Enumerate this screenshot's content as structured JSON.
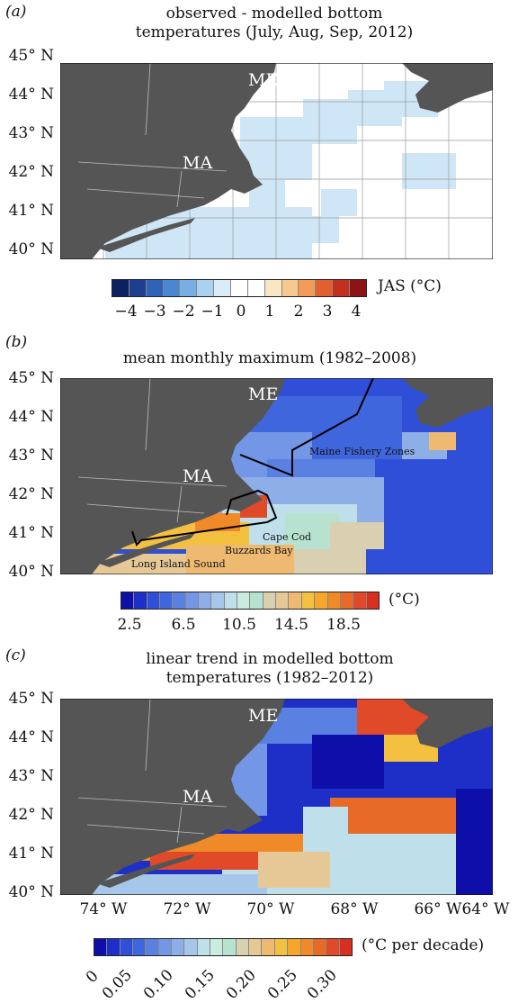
{
  "panels": {
    "a": {
      "label": "(a)",
      "title_line1": "observed - modelled bottom",
      "title_line2": "temperatures (July, Aug, Sep, 2012)",
      "state_labels": [
        "ME",
        "MA"
      ],
      "colorbar": {
        "label": "JAS (°C)",
        "ticks": [
          "−4",
          "−3",
          "−2",
          "−1",
          "0",
          "1",
          "2",
          "3",
          "4"
        ],
        "colors": [
          "#0c1f5e",
          "#1c3f8f",
          "#2f63b8",
          "#4a86d2",
          "#79aee3",
          "#a9d2f0",
          "#d8ecf8",
          "#ffffff",
          "#ffffff",
          "#fbe6c4",
          "#f7c98e",
          "#f39c5a",
          "#e0602f",
          "#c3301f",
          "#8e1414"
        ]
      }
    },
    "b": {
      "label": "(b)",
      "title": "mean monthly maximum (1982–2008)",
      "state_labels": [
        "ME",
        "MA"
      ],
      "annotations": [
        "Maine Fishery Zones",
        "Cape Cod",
        "Buzzards Bay",
        "Long Island Sound"
      ],
      "colorbar": {
        "label": "(°C)",
        "ticks": [
          "2.5",
          "6.5",
          "10.5",
          "14.5",
          "18.5"
        ],
        "colors": [
          "#0e0fa8",
          "#1e2fc8",
          "#2f4fd8",
          "#4066de",
          "#5a80e2",
          "#7397e6",
          "#8eaee8",
          "#a6c6ea",
          "#bfe0ea",
          "#c8ece0",
          "#b8e2d0",
          "#d8d0b0",
          "#e6c896",
          "#eeba72",
          "#f4c040",
          "#f6a62a",
          "#f08a28",
          "#e86a28",
          "#e04a28",
          "#d83020"
        ]
      }
    },
    "c": {
      "label": "(c)",
      "title_line1": "linear trend in modelled bottom",
      "title_line2": "temperatures (1982–2012)",
      "state_labels": [
        "ME",
        "MA"
      ],
      "colorbar": {
        "label": "(°C per decade)",
        "ticks": [
          "0",
          "0.05",
          "0.10",
          "0.15",
          "0.20",
          "0.25",
          "0.30"
        ],
        "colors": [
          "#0e0fa8",
          "#1e2fc8",
          "#2f4fd8",
          "#4066de",
          "#5a80e2",
          "#7397e6",
          "#8eaee8",
          "#a6c6ea",
          "#bfe0ea",
          "#c8ece0",
          "#b8e2d0",
          "#d8d0b0",
          "#e6c896",
          "#eeba72",
          "#f4c040",
          "#f6a62a",
          "#f08a28",
          "#e86a28",
          "#e04a28",
          "#d83020"
        ]
      }
    }
  },
  "axes": {
    "lat_labels": [
      "45° N",
      "44° N",
      "43° N",
      "42° N",
      "41° N",
      "40° N"
    ],
    "lon_labels": [
      "74° W",
      "72° W",
      "70° W",
      "68° W",
      "66° W",
      "64° W"
    ]
  },
  "colors": {
    "land": "#555555",
    "ocean_white": "#ffffff",
    "light_blue": "#cfe6f6",
    "deep_blue": "#1a1ad0",
    "grid": "#9a9a9a"
  }
}
